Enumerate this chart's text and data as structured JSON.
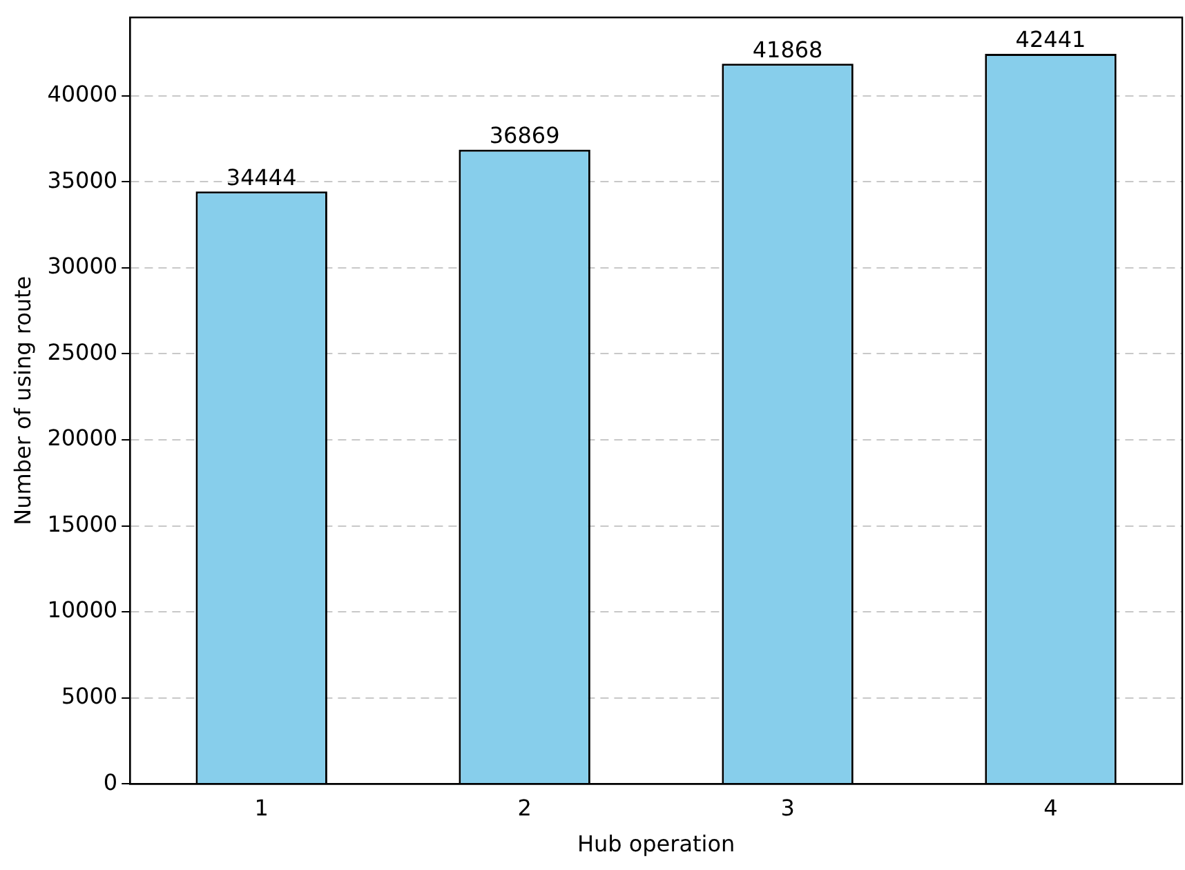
{
  "chart_data": {
    "type": "bar",
    "xlabel": "Hub operation",
    "ylabel": "Number of using route",
    "categories": [
      "1",
      "2",
      "3",
      "4"
    ],
    "values": [
      34444,
      36869,
      41868,
      42441
    ],
    "color": "#87ceeb",
    "ylim": [
      0,
      44563
    ],
    "yticks": [
      0,
      5000,
      10000,
      15000,
      20000,
      25000,
      30000,
      35000,
      40000
    ],
    "grid": "y",
    "data_labels": true,
    "legend": false
  }
}
